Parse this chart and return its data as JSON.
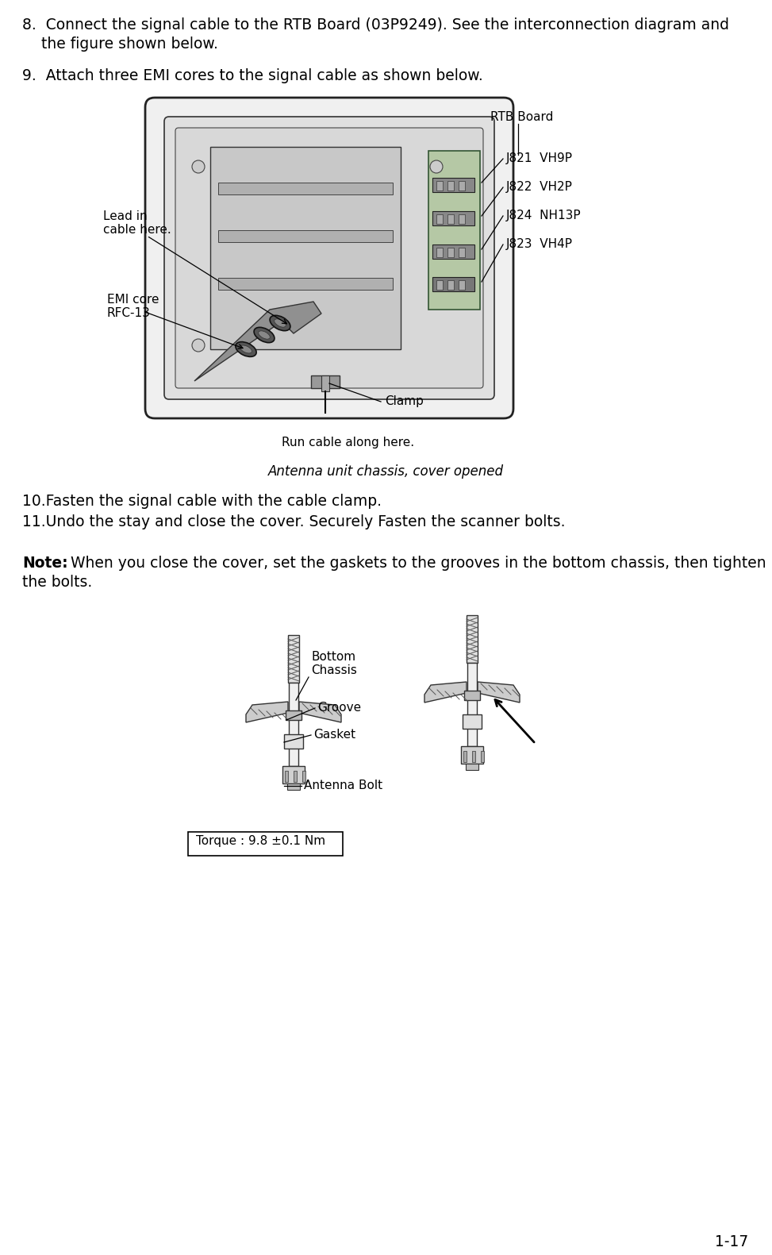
{
  "page_number": "1-17",
  "bg_color": "#ffffff",
  "text_color": "#000000",
  "line8": "8.  Connect the signal cable to the RTB Board (03P9249). See the interconnection diagram and",
  "line8b": "    the figure shown below.",
  "line9": "9.  Attach three EMI cores to the signal cable as shown below.",
  "caption": "Antenna unit chassis, cover opened",
  "line10": "10.Fasten the signal cable with the cable clamp.",
  "line11": "11.Undo the stay and close the cover. Securely Fasten the scanner bolts.",
  "note_bold": "Note:",
  "note_rest": " When you close the cover, set the gaskets to the grooves in the bottom chassis, then tighten",
  "note_rest2": "the bolts.",
  "torque_box": "Torque : 9.8 ±0.1 Nm",
  "label_rtb": "RTB Board",
  "label_j821": "J821  VH9P",
  "label_j822": "J822  VH2P",
  "label_j824": "J824  NH13P",
  "label_j823": "J823  VH4P",
  "label_lead": "Lead in\ncable here.",
  "label_emi": "EMI core\nRFC-13",
  "label_clamp": "Clamp",
  "label_run": "Run cable along here.",
  "label_bottom": "Bottom\nChassis",
  "label_groove": "Groove",
  "label_gasket": "Gasket",
  "label_antenna_bolt": "Antenna Bolt",
  "fs_main": 13.5,
  "fs_label": 11,
  "fs_caption": 12,
  "fs_note": 13.5
}
